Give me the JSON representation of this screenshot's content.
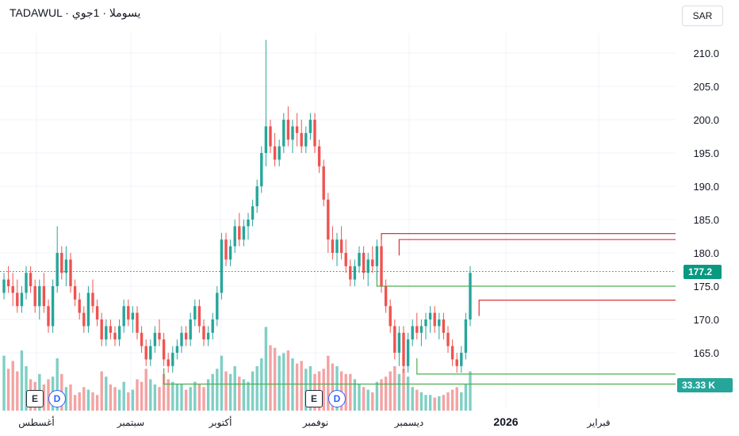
{
  "header": {
    "title": "TADAWUL · ي‍سوملا · 1جوي"
  },
  "currency": {
    "label": "SAR"
  },
  "events": [
    {
      "type": "E",
      "color": "#2a2e39"
    },
    {
      "type": "D",
      "color": "#2962ff"
    },
    {
      "type": "E",
      "color": "#2a2e39"
    },
    {
      "type": "D",
      "color": "#2962ff"
    }
  ],
  "colors": {
    "up": "#26a69a",
    "down": "#ef5350",
    "grid": "#f0f3fa",
    "support": "#4caf50",
    "resistance": "#e0323f",
    "last_price": "#089981",
    "volume_up": "#7fcfc4",
    "volume_down": "#f3a3a3"
  },
  "last_price_label": "177.2",
  "volume_label": "33.33 K",
  "chart_data": {
    "type": "candlestick",
    "y_axis": {
      "min": 160,
      "max": 213,
      "ticks": [
        "165.0",
        "170.0",
        "175.0",
        "180.0",
        "185.0",
        "190.0",
        "195.0",
        "200.0",
        "205.0",
        "210.0"
      ],
      "side": "right"
    },
    "x_axis": {
      "labels": [
        "أغسطس",
        "سبتمبر",
        "أكتوبر",
        "نوفمبر",
        "ديسمبر",
        "2026",
        "فبراير"
      ]
    },
    "last_price": 177.2,
    "last_volume": "33.33 K",
    "grid": true,
    "levels": {
      "resistance": [
        {
          "price": 182.9,
          "from_candle": 85
        },
        {
          "price": 182.0,
          "from_candle": 89
        },
        {
          "price": 172.9,
          "from_candle": 107
        }
      ],
      "support": [
        {
          "price": 175.0,
          "from_candle": 84
        },
        {
          "price": 161.8,
          "from_candle": 93
        },
        {
          "price": 160.3,
          "from_candle": 36
        }
      ]
    },
    "candles": [
      [
        174,
        177,
        173,
        176,
        210
      ],
      [
        176,
        178,
        174,
        175,
        160
      ],
      [
        175,
        177,
        172,
        174,
        190
      ],
      [
        174,
        176,
        171,
        172,
        150
      ],
      [
        172,
        175,
        171,
        174,
        230
      ],
      [
        174,
        178,
        173,
        177,
        170
      ],
      [
        177,
        178,
        174,
        175,
        120
      ],
      [
        175,
        176,
        171,
        172,
        110
      ],
      [
        172,
        176,
        170,
        175,
        140
      ],
      [
        175,
        177,
        171,
        172,
        100
      ],
      [
        172,
        173,
        168,
        169,
        120
      ],
      [
        169,
        176,
        168,
        175,
        130
      ],
      [
        175,
        184,
        174,
        180,
        200
      ],
      [
        180,
        181,
        176,
        177,
        140
      ],
      [
        177,
        181,
        175,
        179,
        90
      ],
      [
        179,
        180,
        174,
        175,
        100
      ],
      [
        175,
        176,
        172,
        173,
        60
      ],
      [
        173,
        174,
        170,
        171,
        70
      ],
      [
        171,
        172,
        168,
        169,
        90
      ],
      [
        169,
        175,
        168,
        174,
        80
      ],
      [
        174,
        176,
        171,
        172,
        70
      ],
      [
        172,
        173,
        169,
        170,
        60
      ],
      [
        170,
        171,
        166,
        167,
        150
      ],
      [
        167,
        170,
        166,
        169,
        130
      ],
      [
        169,
        170,
        167,
        168,
        100
      ],
      [
        168,
        169,
        166,
        167,
        90
      ],
      [
        167,
        170,
        166,
        169,
        80
      ],
      [
        169,
        173,
        168,
        172,
        110
      ],
      [
        172,
        173,
        169,
        170,
        70
      ],
      [
        170,
        172,
        168,
        171,
        80
      ],
      [
        171,
        172,
        167,
        168,
        120
      ],
      [
        168,
        169,
        165,
        166,
        110
      ],
      [
        166,
        167,
        163,
        164,
        160
      ],
      [
        164,
        167,
        163,
        166,
        120
      ],
      [
        166,
        169,
        165,
        168,
        100
      ],
      [
        168,
        170,
        166,
        167,
        90
      ],
      [
        167,
        168,
        163,
        164,
        140
      ],
      [
        164,
        165,
        162,
        163,
        120
      ],
      [
        163,
        166,
        162,
        165,
        110
      ],
      [
        165,
        167,
        164,
        166,
        100
      ],
      [
        166,
        169,
        165,
        168,
        100
      ],
      [
        168,
        169,
        166,
        167,
        80
      ],
      [
        167,
        171,
        166,
        170,
        90
      ],
      [
        170,
        173,
        169,
        172,
        110
      ],
      [
        172,
        173,
        168,
        169,
        100
      ],
      [
        169,
        170,
        166,
        167,
        90
      ],
      [
        167,
        169,
        166,
        168,
        120
      ],
      [
        168,
        171,
        167,
        170,
        140
      ],
      [
        170,
        175,
        169,
        174,
        160
      ],
      [
        174,
        183,
        173,
        182,
        210
      ],
      [
        182,
        183,
        178,
        179,
        150
      ],
      [
        179,
        182,
        178,
        181,
        140
      ],
      [
        181,
        185,
        180,
        184,
        170
      ],
      [
        184,
        186,
        181,
        182,
        130
      ],
      [
        182,
        185,
        181,
        184,
        120
      ],
      [
        184,
        186,
        182,
        185,
        110
      ],
      [
        185,
        188,
        184,
        187,
        150
      ],
      [
        187,
        191,
        186,
        190,
        170
      ],
      [
        190,
        196,
        189,
        195,
        200
      ],
      [
        195,
        212,
        193,
        199,
        320
      ],
      [
        199,
        200,
        195,
        196,
        250
      ],
      [
        196,
        198,
        193,
        194,
        240
      ],
      [
        194,
        197,
        193,
        196,
        210
      ],
      [
        196,
        201,
        195,
        200,
        220
      ],
      [
        200,
        202,
        196,
        197,
        230
      ],
      [
        197,
        200,
        195,
        199,
        200
      ],
      [
        199,
        201,
        196,
        198,
        180
      ],
      [
        198,
        200,
        195,
        196,
        190
      ],
      [
        196,
        199,
        195,
        198,
        160
      ],
      [
        198,
        201,
        197,
        200,
        170
      ],
      [
        200,
        201,
        195,
        196,
        140
      ],
      [
        196,
        197,
        192,
        193,
        150
      ],
      [
        193,
        194,
        187,
        188,
        160
      ],
      [
        188,
        189,
        180,
        182,
        210
      ],
      [
        182,
        184,
        179,
        180,
        180
      ],
      [
        180,
        183,
        178,
        182,
        170
      ],
      [
        182,
        184,
        179,
        180,
        150
      ],
      [
        180,
        182,
        177,
        178,
        140
      ],
      [
        178,
        179,
        175,
        176,
        140
      ],
      [
        176,
        179,
        175,
        178,
        120
      ],
      [
        178,
        181,
        177,
        180,
        100
      ],
      [
        180,
        181,
        176,
        177,
        90
      ],
      [
        177,
        180,
        175,
        179,
        80
      ],
      [
        179,
        181,
        177,
        178,
        70
      ],
      [
        178,
        182,
        176,
        181,
        110
      ],
      [
        181,
        182,
        174,
        175,
        120
      ],
      [
        175,
        176,
        171,
        172,
        130
      ],
      [
        172,
        173,
        168,
        169,
        150
      ],
      [
        169,
        170,
        164,
        165,
        170
      ],
      [
        165,
        169,
        163,
        168,
        140
      ],
      [
        168,
        169,
        162,
        163,
        160
      ],
      [
        163,
        168,
        162,
        167,
        130
      ],
      [
        167,
        170,
        166,
        169,
        90
      ],
      [
        169,
        171,
        167,
        168,
        80
      ],
      [
        168,
        170,
        166,
        169,
        70
      ],
      [
        169,
        171,
        167,
        170,
        60
      ],
      [
        170,
        172,
        168,
        171,
        60
      ],
      [
        171,
        172,
        168,
        169,
        50
      ],
      [
        169,
        171,
        167,
        170,
        55
      ],
      [
        170,
        171,
        167,
        168,
        60
      ],
      [
        168,
        169,
        165,
        166,
        70
      ],
      [
        166,
        167,
        163,
        164,
        80
      ],
      [
        164,
        165,
        162,
        163,
        90
      ],
      [
        163,
        166,
        162,
        165,
        70
      ],
      [
        165,
        171,
        164,
        170,
        100
      ],
      [
        170,
        178,
        169,
        177,
        150
      ]
    ]
  }
}
